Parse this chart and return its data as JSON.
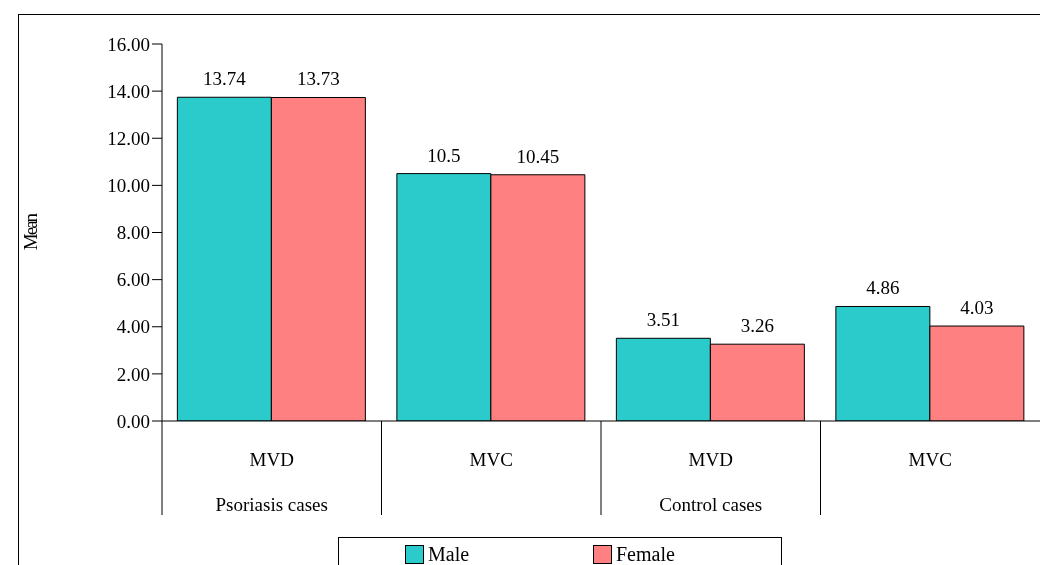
{
  "chart_data": {
    "type": "bar",
    "ylabel": "Mean",
    "categories": [
      "MVD",
      "MVC",
      "MVD",
      "MVC"
    ],
    "series": [
      {
        "name": "Male",
        "color": "#2bcbcb",
        "values": [
          13.74,
          10.5,
          3.51,
          4.86
        ]
      },
      {
        "name": "Female",
        "color": "#ff8080",
        "values": [
          13.73,
          10.45,
          3.26,
          4.03
        ]
      }
    ],
    "ylim": [
      0,
      16
    ],
    "yticks": [
      {
        "value": 0,
        "label": "0.00"
      },
      {
        "value": 2,
        "label": "2.00"
      },
      {
        "value": 4,
        "label": "4.00"
      },
      {
        "value": 6,
        "label": "6.00"
      },
      {
        "value": 8,
        "label": "8.00"
      },
      {
        "value": 10,
        "label": "10.00"
      },
      {
        "value": 12,
        "label": "12.00"
      },
      {
        "value": 14,
        "label": "14.00"
      },
      {
        "value": 16,
        "label": "16.00"
      }
    ],
    "data_labels": true,
    "grid": false,
    "legend": "bottom",
    "annotations": [
      "Psoriasis cases",
      "Control cases"
    ]
  }
}
